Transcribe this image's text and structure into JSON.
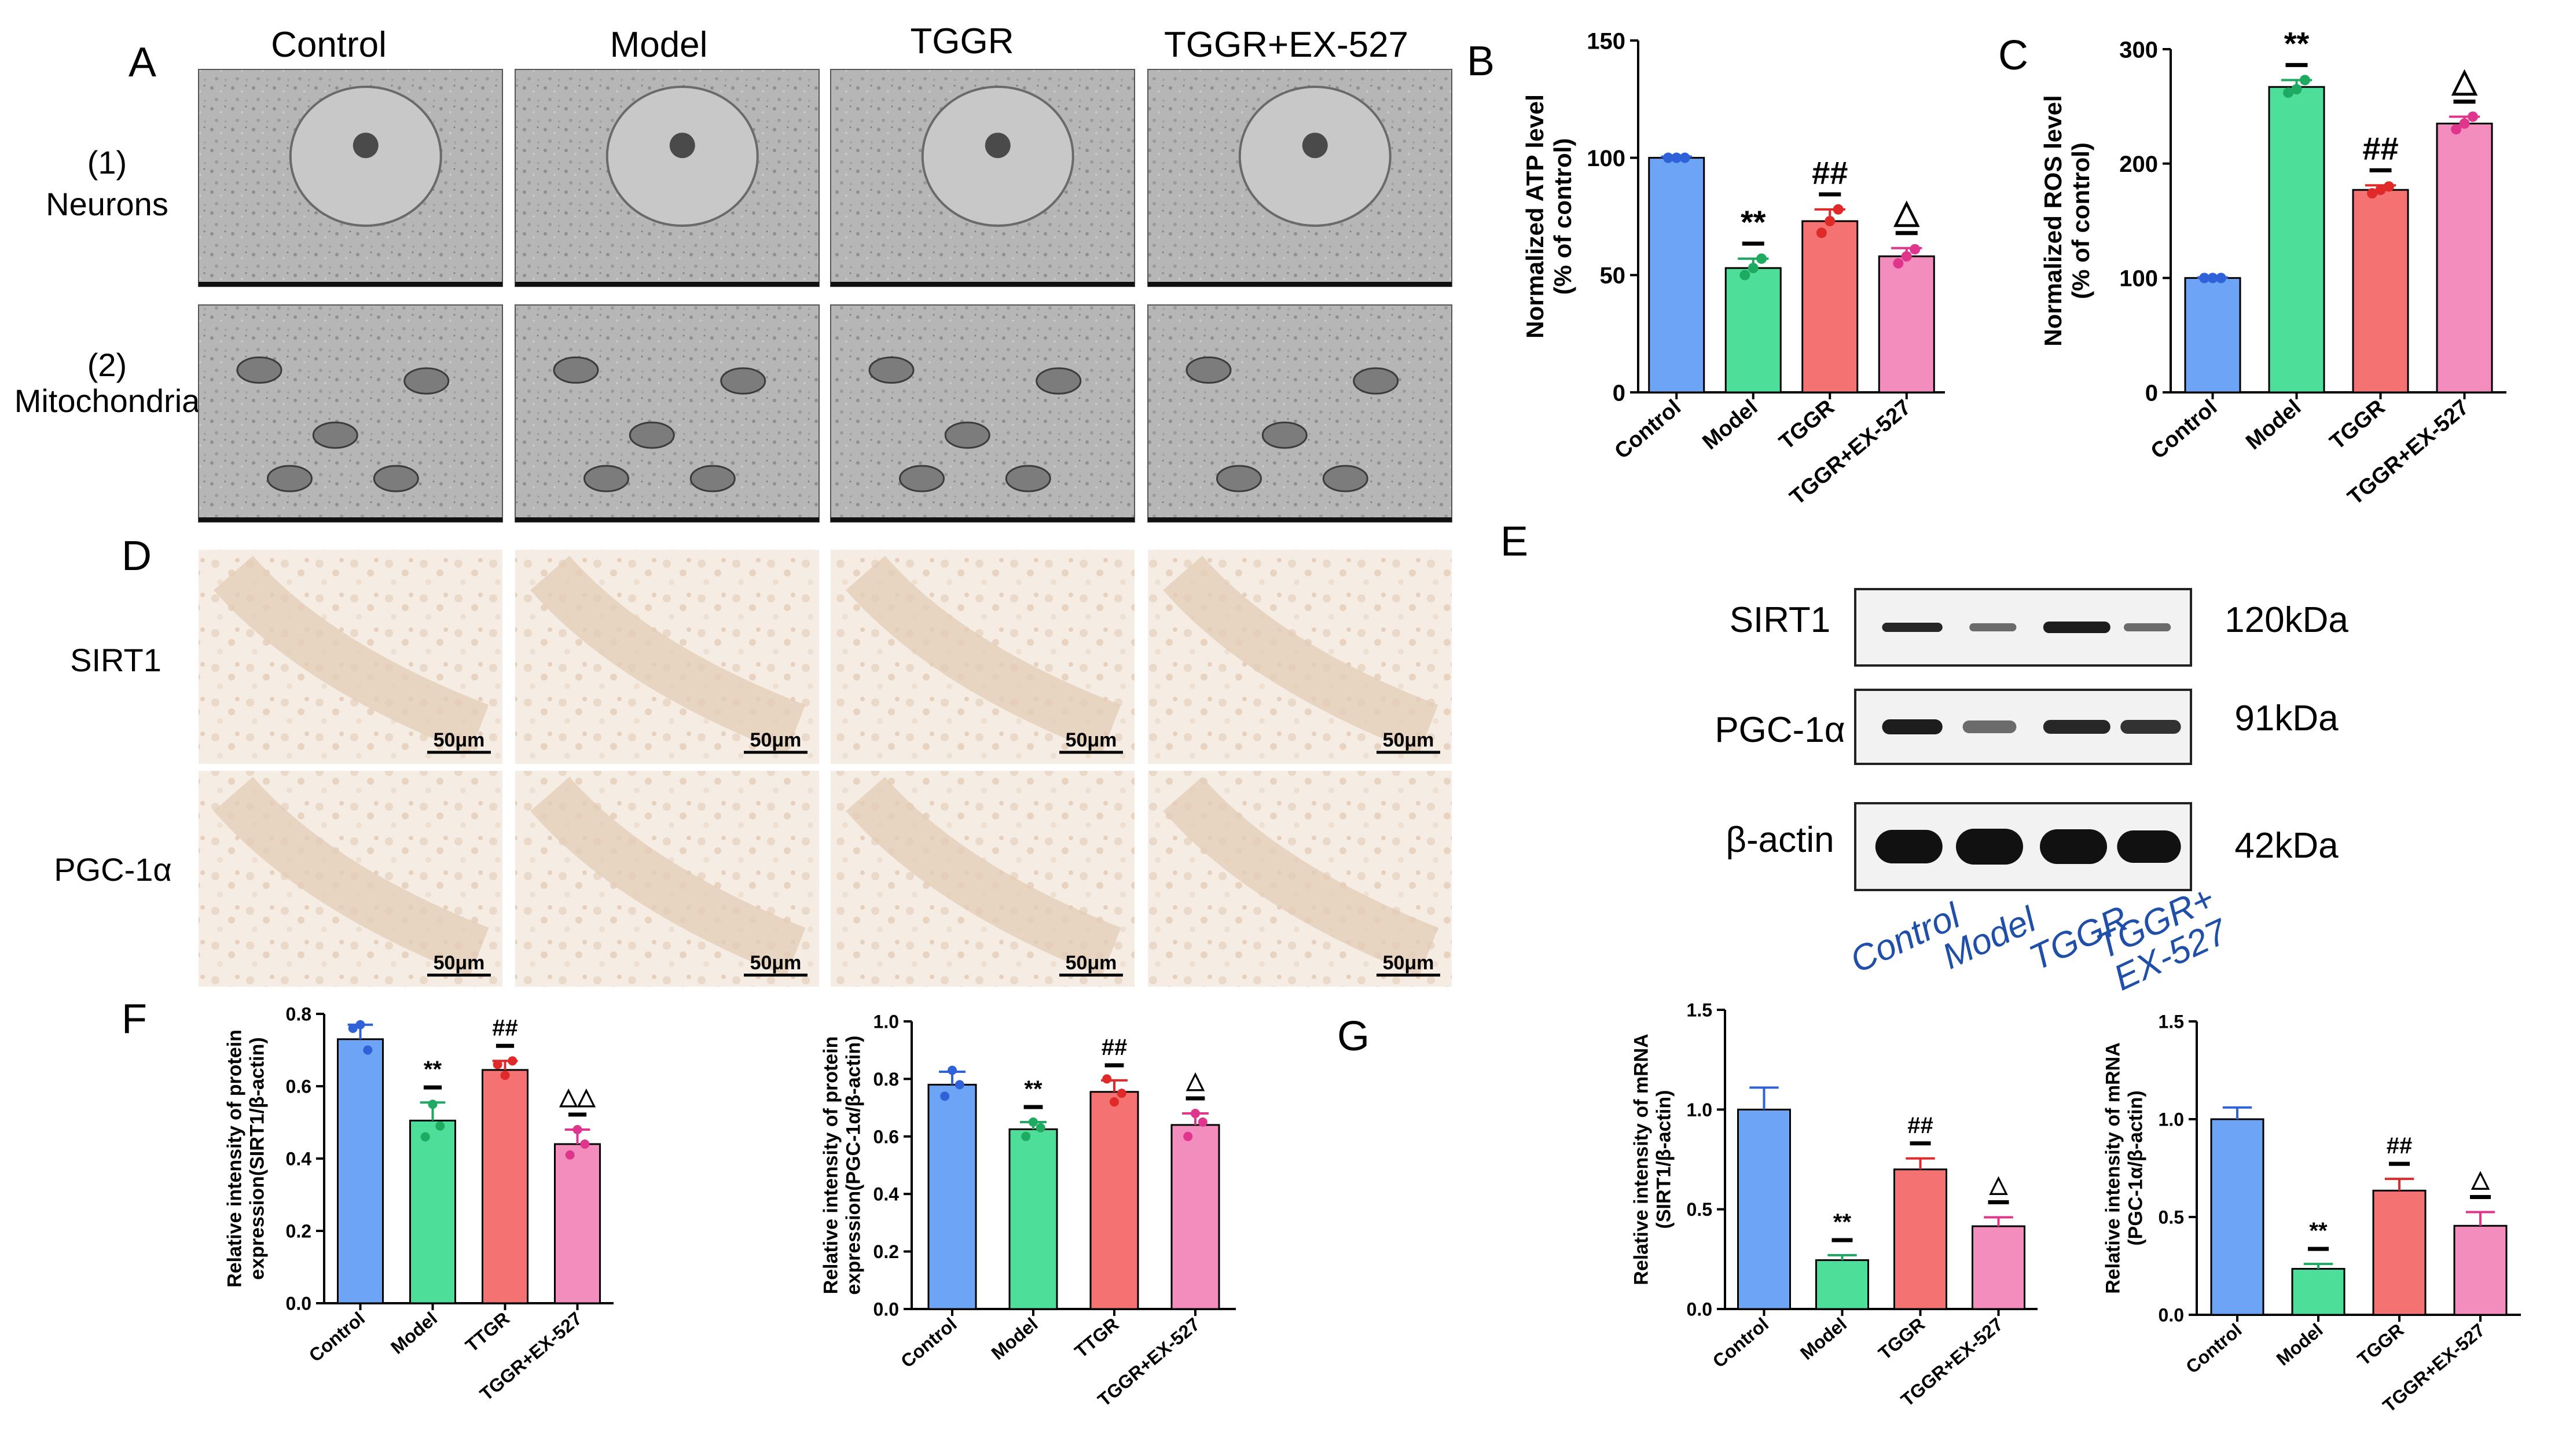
{
  "panel_letters": {
    "A": "A",
    "B": "B",
    "C": "C",
    "D": "D",
    "E": "E",
    "F": "F",
    "G": "G"
  },
  "groups": [
    "Control",
    "Model",
    "TGGR",
    "TGGR+EX-527"
  ],
  "colors": {
    "control": "#6ea4f5",
    "model": "#4ddf9a",
    "tggr": "#f57272",
    "ex527": "#f28dbd"
  },
  "panel_A": {
    "rows": [
      {
        "num": "(1)",
        "name": "Neurons"
      },
      {
        "num": "(2)",
        "name": "Mitochondria"
      }
    ],
    "image_kind": "transmission electron micrographs"
  },
  "panel_D": {
    "rows": [
      "SIRT1",
      "PGC-1α"
    ],
    "scale_bar": "50μm",
    "image_kind": "immunohistochemistry sections"
  },
  "panel_E": {
    "bands": [
      {
        "name": "SIRT1",
        "size": "120kDa"
      },
      {
        "name": "PGC-1α",
        "size": "91kDa"
      },
      {
        "name": "β-actin",
        "size": "42kDa"
      }
    ],
    "lanes": [
      "Control",
      "Model",
      "TGGR",
      "TGGR+\nEX-527"
    ]
  },
  "chart_data": [
    {
      "panel": "B",
      "type": "bar",
      "categories": [
        "Control",
        "Model",
        "TGGR",
        "TGGR+EX-527"
      ],
      "values": [
        100,
        53,
        73,
        58
      ],
      "errors": [
        0.5,
        4,
        5,
        3.5
      ],
      "points": [
        [
          100,
          100,
          100
        ],
        [
          50,
          53,
          57
        ],
        [
          68,
          73,
          78
        ],
        [
          55,
          58,
          61
        ]
      ],
      "significance": [
        "",
        "**",
        "##",
        "△"
      ],
      "ylabel": "Normalized ATP level\n(% of control)",
      "ylim": [
        0,
        150
      ],
      "yticks": [
        0,
        50,
        100,
        150
      ]
    },
    {
      "panel": "C",
      "type": "bar",
      "categories": [
        "Control",
        "Model",
        "TGGR",
        "TGGR+EX-527"
      ],
      "values": [
        100,
        267,
        177,
        235
      ],
      "errors": [
        0.5,
        6,
        4,
        6
      ],
      "points": [
        [
          100,
          100,
          100
        ],
        [
          262,
          265,
          273
        ],
        [
          174,
          177,
          180
        ],
        [
          230,
          235,
          241
        ]
      ],
      "significance": [
        "",
        "**",
        "##",
        "△"
      ],
      "ylabel": "Normalized ROS level\n(% of control)",
      "ylim": [
        0,
        300
      ],
      "yticks": [
        0,
        100,
        200,
        300
      ]
    },
    {
      "panel": "F-left",
      "type": "bar",
      "categories": [
        "Control",
        "Model",
        "TTGR",
        "TGGR+EX-527"
      ],
      "values": [
        0.73,
        0.505,
        0.645,
        0.44
      ],
      "errors": [
        0.04,
        0.05,
        0.025,
        0.04
      ],
      "points": [
        [
          0.76,
          0.77,
          0.7
        ],
        [
          0.46,
          0.55,
          0.49
        ],
        [
          0.66,
          0.63,
          0.67
        ],
        [
          0.41,
          0.48,
          0.44
        ]
      ],
      "significance": [
        "",
        "**",
        "##",
        "△△"
      ],
      "ylabel": "Relative intensity of protein\nexpression(SIRT1/β-actin)",
      "ylim": [
        0,
        0.8
      ],
      "yticks": [
        "0.0",
        "0.2",
        "0.4",
        "0.6",
        "0.8"
      ]
    },
    {
      "panel": "F-right",
      "type": "bar",
      "categories": [
        "Control",
        "Model",
        "TTGR",
        "TGGR+EX-527"
      ],
      "values": [
        0.78,
        0.625,
        0.755,
        0.64
      ],
      "errors": [
        0.045,
        0.025,
        0.04,
        0.04
      ],
      "points": [
        [
          0.74,
          0.83,
          0.78
        ],
        [
          0.6,
          0.65,
          0.63
        ],
        [
          0.8,
          0.72,
          0.75
        ],
        [
          0.6,
          0.68,
          0.65
        ]
      ],
      "significance": [
        "",
        "**",
        "##",
        "△"
      ],
      "ylabel": "Relative intensity of protein\nexpression(PGC-1α/β-actin)",
      "ylim": [
        0,
        1.0
      ],
      "yticks": [
        "0.0",
        "0.2",
        "0.4",
        "0.6",
        "0.8",
        "1.0"
      ]
    },
    {
      "panel": "G-left",
      "type": "bar",
      "categories": [
        "Control",
        "Model",
        "TGGR",
        "TGGR+EX-527"
      ],
      "values": [
        1.0,
        0.245,
        0.7,
        0.415
      ],
      "errors": [
        0.11,
        0.025,
        0.055,
        0.045
      ],
      "points": null,
      "significance": [
        "",
        "**",
        "##",
        "△"
      ],
      "ylabel": "Relative intensity of mRNA\n(SIRT1/β-actin)",
      "ylim": [
        0,
        1.5
      ],
      "yticks": [
        "0.0",
        "0.5",
        "1.0",
        "1.5"
      ]
    },
    {
      "panel": "G-right",
      "type": "bar",
      "categories": [
        "Control",
        "Model",
        "TGGR",
        "TGGR+EX-527"
      ],
      "values": [
        1.0,
        0.235,
        0.635,
        0.455
      ],
      "errors": [
        0.06,
        0.025,
        0.06,
        0.07
      ],
      "points": null,
      "significance": [
        "",
        "**",
        "##",
        "△"
      ],
      "ylabel": "Relative intensity of mRNA\n(PGC-1α/β-actin)",
      "ylim": [
        0,
        1.5
      ],
      "yticks": [
        "0.0",
        "0.5",
        "1.0",
        "1.5"
      ]
    }
  ]
}
